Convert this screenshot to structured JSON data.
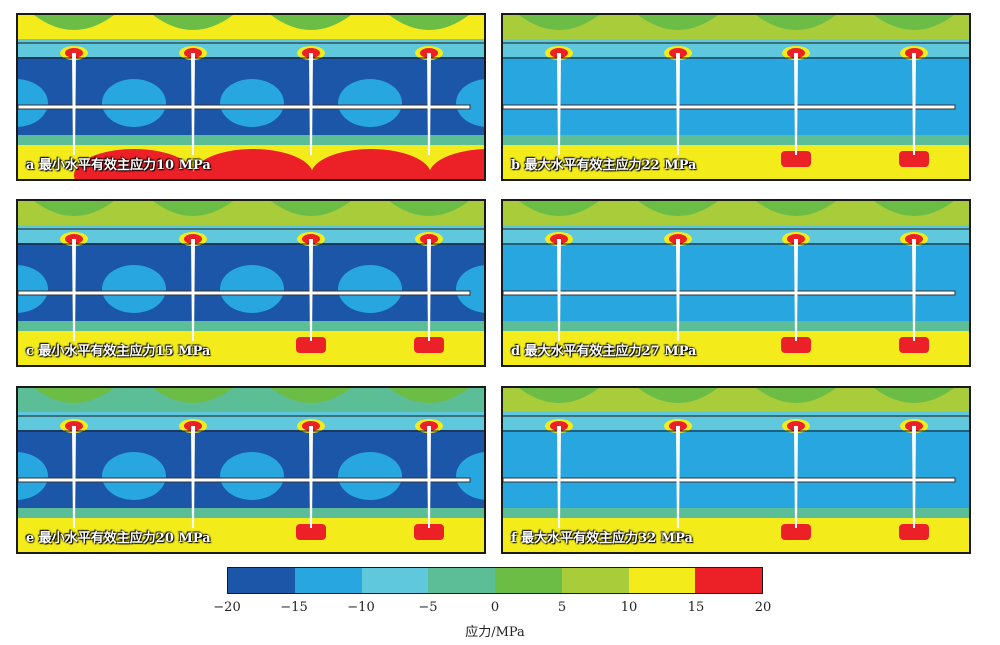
{
  "panels": [
    {
      "label": "a 最小水平有效主应力10 MPa",
      "case": "min",
      "value_mpa": 10
    },
    {
      "label": "b 最大水平有效主应力22 MPa",
      "case": "max",
      "value_mpa": 22
    },
    {
      "label": "c 最小水平有效主应力15 MPa",
      "case": "min",
      "value_mpa": 15
    },
    {
      "label": "d 最大水平有效主应力27 MPa",
      "case": "max",
      "value_mpa": 27
    },
    {
      "label": "e 最小水平有效主应力20 MPa",
      "case": "min",
      "value_mpa": 20
    },
    {
      "label": "f 最大水平有效主应力32 MPa",
      "case": "max",
      "value_mpa": 32
    }
  ],
  "colorbar": {
    "ticks": [
      "−20",
      "−15",
      "−10",
      "−5",
      "0",
      "5",
      "10",
      "15",
      "20"
    ],
    "colors": [
      "#1c56a8",
      "#27a6e0",
      "#5fc8dc",
      "#5cbe96",
      "#6cbd45",
      "#a8cc3a",
      "#f3ec1a",
      "#ec2027"
    ],
    "unit_label": "应力/MPa"
  }
}
